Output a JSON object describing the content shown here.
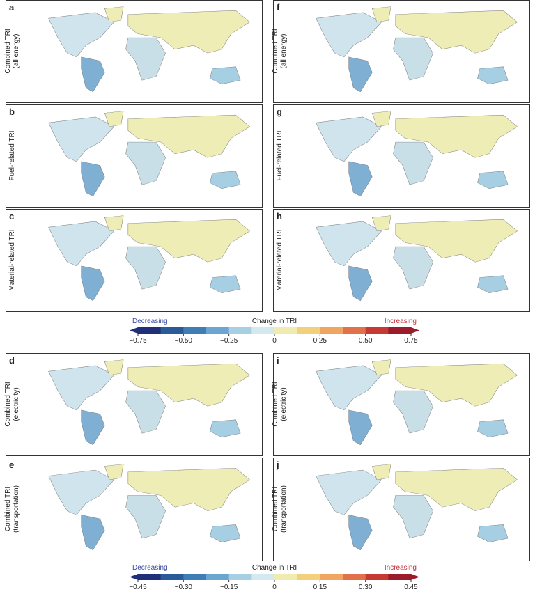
{
  "panels": [
    {
      "letter": "a",
      "ylabel": [
        "Combined TRI",
        "(all energy)"
      ]
    },
    {
      "letter": "b",
      "ylabel": [
        "Fuel-related TRI"
      ]
    },
    {
      "letter": "c",
      "ylabel": [
        "Material-related TRI"
      ]
    },
    {
      "letter": "f",
      "ylabel": [
        "Combined TRI",
        "(all energy)"
      ]
    },
    {
      "letter": "g",
      "ylabel": [
        "Fuel-related TRI"
      ]
    },
    {
      "letter": "h",
      "ylabel": [
        "Material-related TRI"
      ]
    },
    {
      "letter": "d",
      "ylabel": [
        "Combined TRI",
        "(electricity)"
      ]
    },
    {
      "letter": "e",
      "ylabel": [
        "Combined TRI",
        "(transportation)"
      ]
    },
    {
      "letter": "i",
      "ylabel": [
        "Combined TRI",
        "(electricity)"
      ]
    },
    {
      "letter": "j",
      "ylabel": [
        "Combined TRI",
        "(transportation)"
      ]
    }
  ],
  "colorbars": [
    {
      "title": "Change in TRI",
      "low_label": "Decreasing",
      "low_color": "#3b4aa0",
      "high_label": "Increasing",
      "high_color": "#c0303a",
      "lim": [
        -0.75,
        0.75
      ],
      "ticks": [
        {
          "value": -0.75,
          "label": "−0.75"
        },
        {
          "value": -0.5,
          "label": "−0.50"
        },
        {
          "value": -0.25,
          "label": "−0.25"
        },
        0,
        {
          "value": 0.25,
          "label": "0.25"
        },
        {
          "value": 0.5,
          "label": "0.50"
        },
        {
          "value": 0.75,
          "label": "0.75"
        }
      ],
      "colors": [
        "#1f2f7a",
        "#2b5a9a",
        "#3f7db5",
        "#6aa6cf",
        "#a6cfe3",
        "#d3e8ef",
        "#f0ecb0",
        "#f3d07c",
        "#f0a560",
        "#e0714a",
        "#c73a33",
        "#9b1b2a"
      ]
    },
    {
      "title": "Change in TRI",
      "low_label": "Decreasing",
      "low_color": "#3b4aa0",
      "high_label": "Increasing",
      "high_color": "#c0303a",
      "lim": [
        -0.45,
        0.45
      ],
      "ticks": [
        {
          "value": -0.45,
          "label": "−0.45"
        },
        {
          "value": -0.3,
          "label": "−0.30"
        },
        {
          "value": -0.15,
          "label": "−0.15"
        },
        0,
        {
          "value": 0.15,
          "label": "0.15"
        },
        {
          "value": 0.3,
          "label": "0.30"
        },
        {
          "value": 0.45,
          "label": "0.45"
        }
      ],
      "colors": [
        "#1f2f7a",
        "#2b5a9a",
        "#3f7db5",
        "#6aa6cf",
        "#a6cfe3",
        "#d3e8ef",
        "#f0ecb0",
        "#f3d07c",
        "#f0a560",
        "#e0714a",
        "#c73a33",
        "#9b1b2a"
      ]
    }
  ]
}
